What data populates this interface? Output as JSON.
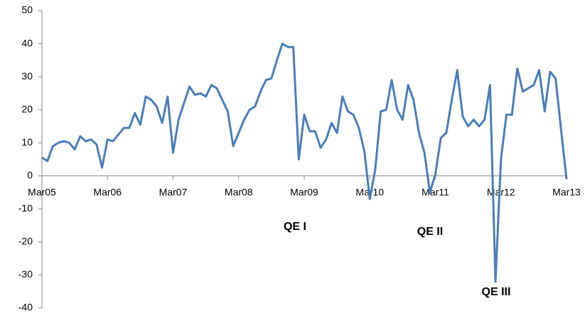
{
  "chart_data": {
    "type": "line",
    "categories": [
      "Mar05",
      null,
      null,
      null,
      null,
      null,
      null,
      null,
      null,
      null,
      null,
      null,
      "Mar06",
      null,
      null,
      null,
      null,
      null,
      null,
      null,
      null,
      null,
      null,
      null,
      "Mar07",
      null,
      null,
      null,
      null,
      null,
      null,
      null,
      null,
      null,
      null,
      null,
      "Mar08",
      null,
      null,
      null,
      null,
      null,
      null,
      null,
      null,
      null,
      null,
      null,
      "Mar09",
      null,
      null,
      null,
      null,
      null,
      null,
      null,
      null,
      null,
      null,
      null,
      "Mar10",
      null,
      null,
      null,
      null,
      null,
      null,
      null,
      null,
      null,
      null,
      null,
      "Mar11",
      null,
      null,
      null,
      null,
      null,
      null,
      null,
      null,
      null,
      null,
      null,
      "Mar12",
      null,
      null,
      null,
      null,
      null,
      null,
      null,
      null,
      null,
      null,
      null,
      "Mar13"
    ],
    "series": [
      {
        "color": "#4a7ebb",
        "values": [
          5.5,
          4.5,
          9,
          10,
          10.5,
          10,
          8,
          12,
          10.5,
          11,
          9.5,
          2.5,
          11,
          10.5,
          12.5,
          14.5,
          14.5,
          19,
          15.5,
          24,
          23,
          21,
          16,
          24,
          7,
          17,
          22,
          27,
          24.5,
          25,
          24,
          27.5,
          26.5,
          23,
          19.5,
          9,
          13,
          17,
          20,
          21,
          25.5,
          29,
          29.5,
          35,
          40,
          39,
          39,
          5,
          18.5,
          13.5,
          13.5,
          8.5,
          11,
          16,
          13,
          24,
          19.5,
          18.5,
          14.5,
          7.5,
          -7,
          2,
          19.5,
          20,
          29,
          20,
          17,
          27.5,
          23,
          13,
          7,
          -5,
          0.5,
          11.5,
          13,
          23,
          32,
          18,
          15,
          17,
          15,
          17,
          27.5,
          -32,
          5,
          18.5,
          18.5,
          32.5,
          25.5,
          26.5,
          27.5,
          32,
          19.5,
          31.5,
          29.5,
          14,
          -1
        ]
      }
    ],
    "ylim": [
      -40,
      50
    ],
    "yticks": [
      -40,
      -30,
      -20,
      -10,
      0,
      10,
      20,
      30,
      40,
      50
    ],
    "annotations": [
      "QE I",
      "QE II",
      "QE III"
    ]
  }
}
